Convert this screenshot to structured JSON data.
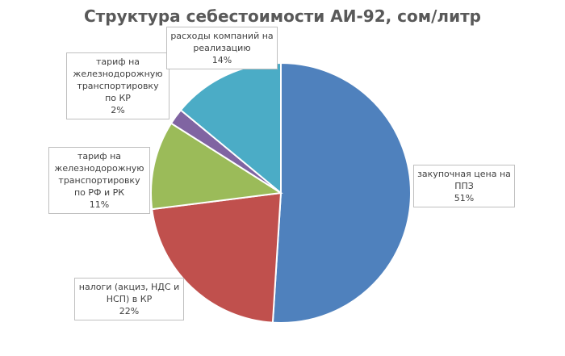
{
  "chart_data": {
    "type": "pie",
    "title": "Структура себестоимости АИ-92, сом/литр",
    "slices": [
      {
        "label": "закупочная цена на ППЗ",
        "percent_label": "51%",
        "value": 51,
        "color": "#4f81bd"
      },
      {
        "label": "налоги (акциз, НДС и НСП) в КР",
        "percent_label": "22%",
        "value": 22,
        "color": "#c0504d"
      },
      {
        "label": "тариф на железнодорожную транспортировку по РФ и РК",
        "percent_label": "11%",
        "value": 11,
        "color": "#9bbb59"
      },
      {
        "label": "тариф на железнодорожную транспортировку по КР",
        "percent_label": "2%",
        "value": 2,
        "color": "#8064a2"
      },
      {
        "label": "расходы компаний на реализацию",
        "percent_label": "14%",
        "value": 14,
        "color": "#4bacc6"
      }
    ],
    "start_angle": "12 o'clock",
    "direction": "clockwise",
    "legend": "none"
  }
}
